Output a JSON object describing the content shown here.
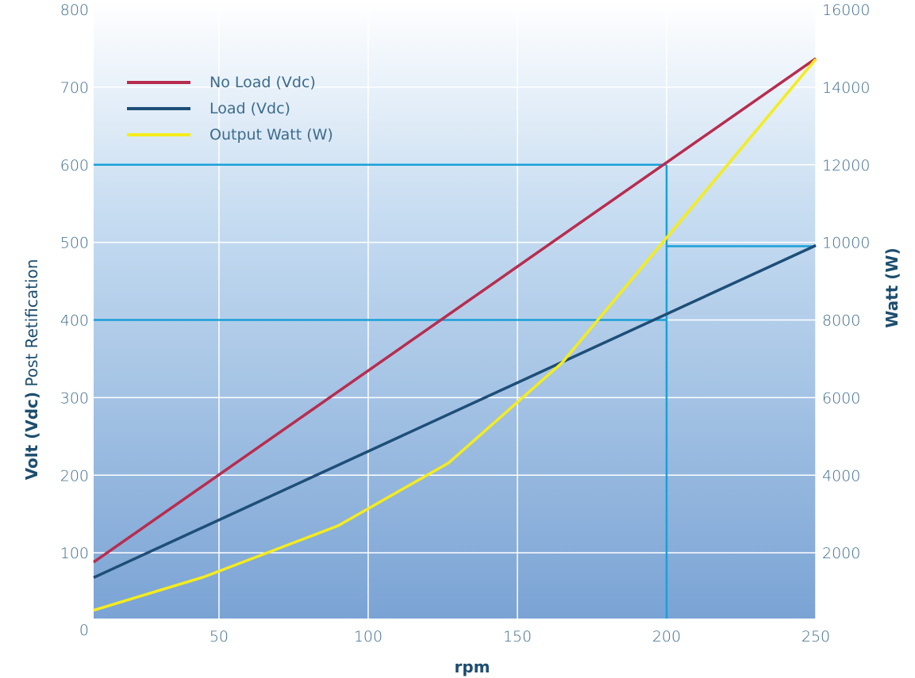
{
  "chart_data": {
    "type": "line",
    "xlabel": "rpm",
    "ylabel_bold": "Volt (Vdc)",
    "ylabel_rest": " Post Retification",
    "y2label": "Watt (W)",
    "xlim": [
      8,
      250
    ],
    "ylim": [
      0,
      800
    ],
    "y2lim": [
      0,
      16000
    ],
    "x_ticks": [
      50,
      100,
      150,
      200,
      250
    ],
    "y_ticks": [
      0,
      100,
      200,
      300,
      400,
      500,
      600,
      700,
      800
    ],
    "y2_ticks": [
      2000,
      4000,
      6000,
      8000,
      10000,
      12000,
      14000,
      16000
    ],
    "x_tick_labels": [
      "50",
      "100",
      "150",
      "200",
      "250"
    ],
    "y_tick_labels": [
      "0",
      "100",
      "200",
      "300",
      "400",
      "500",
      "600",
      "700",
      "800"
    ],
    "y2_tick_labels": [
      "2000",
      "4000",
      "6000",
      "8000",
      "10000",
      "12000",
      "14000",
      "16000"
    ],
    "grid": true,
    "legend_position": "top-left",
    "series": [
      {
        "name": "No Load (Vdc)",
        "axis": "left",
        "color": "#b82c4e",
        "x": [
          8,
          250
        ],
        "y": [
          88,
          737
        ]
      },
      {
        "name": "Load (Vdc)",
        "axis": "left",
        "color": "#1d4e78",
        "x": [
          8,
          250
        ],
        "y": [
          68,
          496
        ]
      },
      {
        "name": "Output Watt (W)",
        "axis": "right",
        "color": "#f5ec1c",
        "x": [
          8,
          45,
          90,
          127,
          165,
          250
        ],
        "y": [
          520,
          1380,
          2700,
          4320,
          6900,
          14720
        ]
      }
    ],
    "reference_lines": {
      "color": "#1aa0d8",
      "vertical": {
        "x": 200,
        "y_from": 0,
        "y_to": 600
      },
      "horizontal": [
        {
          "y": 600,
          "x_from": 8,
          "x_to": 200,
          "axis": "left"
        },
        {
          "y": 400,
          "x_from": 8,
          "x_to": 200,
          "axis": "left"
        },
        {
          "y": 495,
          "x_from": 200,
          "x_to": 250,
          "axis": "left"
        }
      ]
    }
  }
}
